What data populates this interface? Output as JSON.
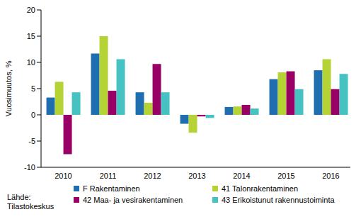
{
  "chart_data": {
    "type": "bar",
    "y_label": "Vuosimuutos, %",
    "annotations": [
      "Lähde:\nTilastokeskus"
    ],
    "categories": [
      "2010",
      "2011",
      "2012",
      "2013",
      "2014",
      "2015",
      "2016"
    ],
    "series": [
      {
        "name": "F Rakentaminen",
        "color": "#1f6fb0",
        "values": [
          3.3,
          11.7,
          4.3,
          -1.7,
          1.5,
          6.8,
          8.5
        ]
      },
      {
        "name": "41 Talonrakentaminen",
        "color": "#b5d334",
        "values": [
          6.3,
          15.0,
          2.3,
          -3.4,
          1.6,
          8.1,
          10.6
        ]
      },
      {
        "name": "42 Maa- ja vesirakentaminen",
        "color": "#990066",
        "values": [
          -7.5,
          4.6,
          9.7,
          -0.3,
          1.9,
          8.3,
          4.9
        ]
      },
      {
        "name": "43 Erikoistunut rakennustoiminta",
        "color": "#46c2c2",
        "values": [
          4.3,
          10.6,
          4.3,
          -0.6,
          1.2,
          4.9,
          7.8
        ]
      }
    ],
    "ylim": [
      -10,
      20
    ],
    "yticks": [
      -10,
      -5,
      0,
      5,
      10,
      15,
      20
    ],
    "grid": false,
    "legend": "bottom"
  }
}
